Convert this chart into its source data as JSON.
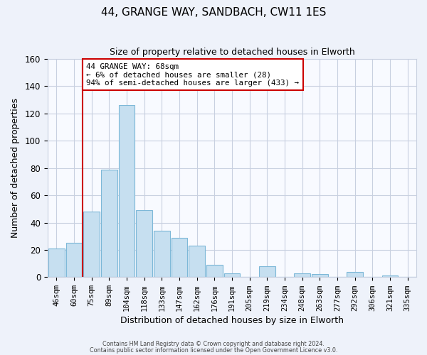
{
  "title": "44, GRANGE WAY, SANDBACH, CW11 1ES",
  "subtitle": "Size of property relative to detached houses in Elworth",
  "xlabel": "Distribution of detached houses by size in Elworth",
  "ylabel": "Number of detached properties",
  "bar_labels": [
    "46sqm",
    "60sqm",
    "75sqm",
    "89sqm",
    "104sqm",
    "118sqm",
    "133sqm",
    "147sqm",
    "162sqm",
    "176sqm",
    "191sqm",
    "205sqm",
    "219sqm",
    "234sqm",
    "248sqm",
    "263sqm",
    "277sqm",
    "292sqm",
    "306sqm",
    "321sqm",
    "335sqm"
  ],
  "bar_values": [
    21,
    25,
    48,
    79,
    126,
    49,
    34,
    29,
    23,
    9,
    3,
    0,
    8,
    0,
    3,
    2,
    0,
    4,
    0,
    1,
    0
  ],
  "bar_color": "#c6dff0",
  "bar_edge_color": "#7db8d8",
  "marker_label": "44 GRANGE WAY: 68sqm",
  "annotation_line1": "← 6% of detached houses are smaller (28)",
  "annotation_line2": "94% of semi-detached houses are larger (433) →",
  "marker_line_color": "#cc0000",
  "annotation_box_edge_color": "#cc0000",
  "ylim": [
    0,
    160
  ],
  "yticks": [
    0,
    20,
    40,
    60,
    80,
    100,
    120,
    140,
    160
  ],
  "footer1": "Contains HM Land Registry data © Crown copyright and database right 2024.",
  "footer2": "Contains public sector information licensed under the Open Government Licence v3.0.",
  "bg_color": "#eef2fa",
  "plot_bg_color": "#f8faff",
  "grid_color": "#c8d0e0",
  "title_fontsize": 11,
  "subtitle_fontsize": 9
}
